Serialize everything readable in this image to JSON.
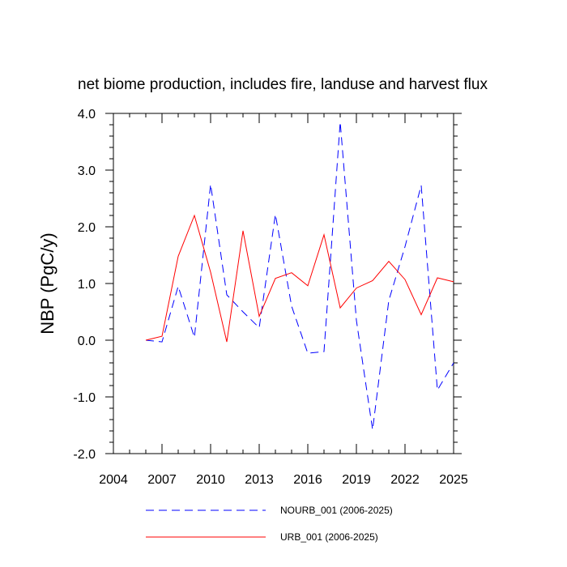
{
  "chart_data": {
    "type": "line",
    "title": "net biome production, includes fire, landuse and harvest flux",
    "ylabel": "NBP  (PgC/y)",
    "xlabel": "",
    "xlim": [
      2004,
      2025
    ],
    "ylim": [
      -2.0,
      4.0
    ],
    "xticks": [
      2004,
      2007,
      2010,
      2013,
      2016,
      2019,
      2022,
      2025
    ],
    "yticks": [
      -2.0,
      -1.0,
      0.0,
      1.0,
      2.0,
      3.0,
      4.0
    ],
    "ytick_labels": [
      "-2.0",
      "-1.0",
      "0.0",
      "1.0",
      "2.0",
      "3.0",
      "4.0"
    ],
    "grid": false,
    "legend_position": "bottom",
    "x": [
      2006,
      2007,
      2008,
      2009,
      2010,
      2011,
      2012,
      2013,
      2014,
      2015,
      2016,
      2017,
      2018,
      2019,
      2020,
      2021,
      2022,
      2023,
      2024,
      2025
    ],
    "series": [
      {
        "name": "NOURB_001 (2006-2025)",
        "color": "#0000ff",
        "dash": "dashed",
        "values": [
          0.0,
          -0.03,
          0.95,
          0.05,
          2.75,
          0.8,
          0.5,
          0.22,
          2.22,
          0.6,
          -0.23,
          -0.2,
          3.85,
          0.35,
          -1.58,
          0.7,
          1.65,
          2.73,
          -0.88,
          -0.4
        ]
      },
      {
        "name": "URB_001 (2006-2025)",
        "color": "#ff0000",
        "dash": "solid",
        "values": [
          0.0,
          0.07,
          1.48,
          2.2,
          1.2,
          -0.03,
          1.93,
          0.42,
          1.09,
          1.19,
          0.96,
          1.86,
          0.57,
          0.92,
          1.05,
          1.39,
          1.07,
          0.45,
          1.1,
          1.03
        ]
      }
    ]
  }
}
